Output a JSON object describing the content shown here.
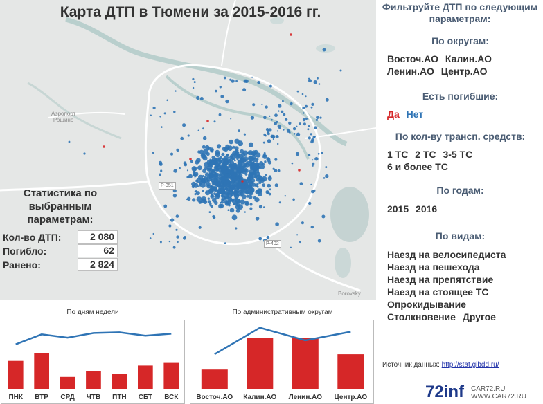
{
  "map": {
    "title": "Карта ДТП в Тюмени за 2015-2016 гг.",
    "labels": {
      "airport": "Аэропорт\nРощино",
      "borovsky": "Borovsky",
      "road_r351": "Р-351",
      "road_r402": "Р-402"
    }
  },
  "stats": {
    "heading": "Статистика по выбранным параметрам:",
    "rows": [
      {
        "label": "Кол-во ДТП:",
        "value": "2 080"
      },
      {
        "label": "Погибло:",
        "value": "62"
      },
      {
        "label": "Ранено:",
        "value": "2 824"
      }
    ]
  },
  "filters": {
    "heading": "Фильтруйте ДТП по следующим параметрам:",
    "district": {
      "heading": "По округам:",
      "items": [
        "Восточ.АО",
        "Калин.АО",
        "Ленин.АО",
        "Центр.АО"
      ]
    },
    "deaths": {
      "heading": "Есть погибшие:",
      "yes": "Да",
      "no": "Нет"
    },
    "vehicles": {
      "heading": "По кол-ву трансп. средств:",
      "items": [
        "1 ТС",
        "2 ТС",
        "3-5 ТС",
        "6 и более ТС"
      ]
    },
    "years": {
      "heading": "По годам:",
      "items": [
        "2015",
        "2016"
      ]
    },
    "types": {
      "heading": "По видам:",
      "items": [
        "Наезд на велосипедиста",
        "Наезд на пешехода",
        "Наезд на препятствие",
        "Наезд на стоящее ТС",
        "Опрокидывание",
        "Столкновение",
        "Другое"
      ]
    }
  },
  "chart_data": [
    {
      "type": "bar",
      "title": "По дням недели",
      "categories": [
        "ПНК",
        "ВТР",
        "СРД",
        "ЧТВ",
        "ПТН",
        "СБТ",
        "ВСК"
      ],
      "values": [
        43,
        55,
        19,
        28,
        23,
        36,
        40
      ],
      "line_values": [
        68,
        83,
        78,
        85,
        86,
        81,
        84
      ],
      "ylim": [
        0,
        100
      ],
      "bar_color": "#d62728",
      "line_color": "#2f74b5"
    },
    {
      "type": "bar",
      "title": "По административным округам",
      "categories": [
        "Восточ.АО",
        "Калин.АО",
        "Ленин.АО",
        "Центр.АО"
      ],
      "values": [
        30,
        78,
        78,
        53
      ],
      "line_values": [
        53,
        93,
        74,
        87
      ],
      "ylim": [
        0,
        100
      ],
      "bar_color": "#d62728",
      "line_color": "#2f74b5"
    }
  ],
  "source": {
    "label": "Источник данных:",
    "link": "http://stat.gibdd.ru/"
  },
  "brand": "72inf",
  "watermark": "CAR72.RU\nWWW.CAR72.RU",
  "colors": {
    "accent_blue": "#2f74b5",
    "accent_red": "#d62728",
    "heading_blue": "#4a5c73"
  }
}
